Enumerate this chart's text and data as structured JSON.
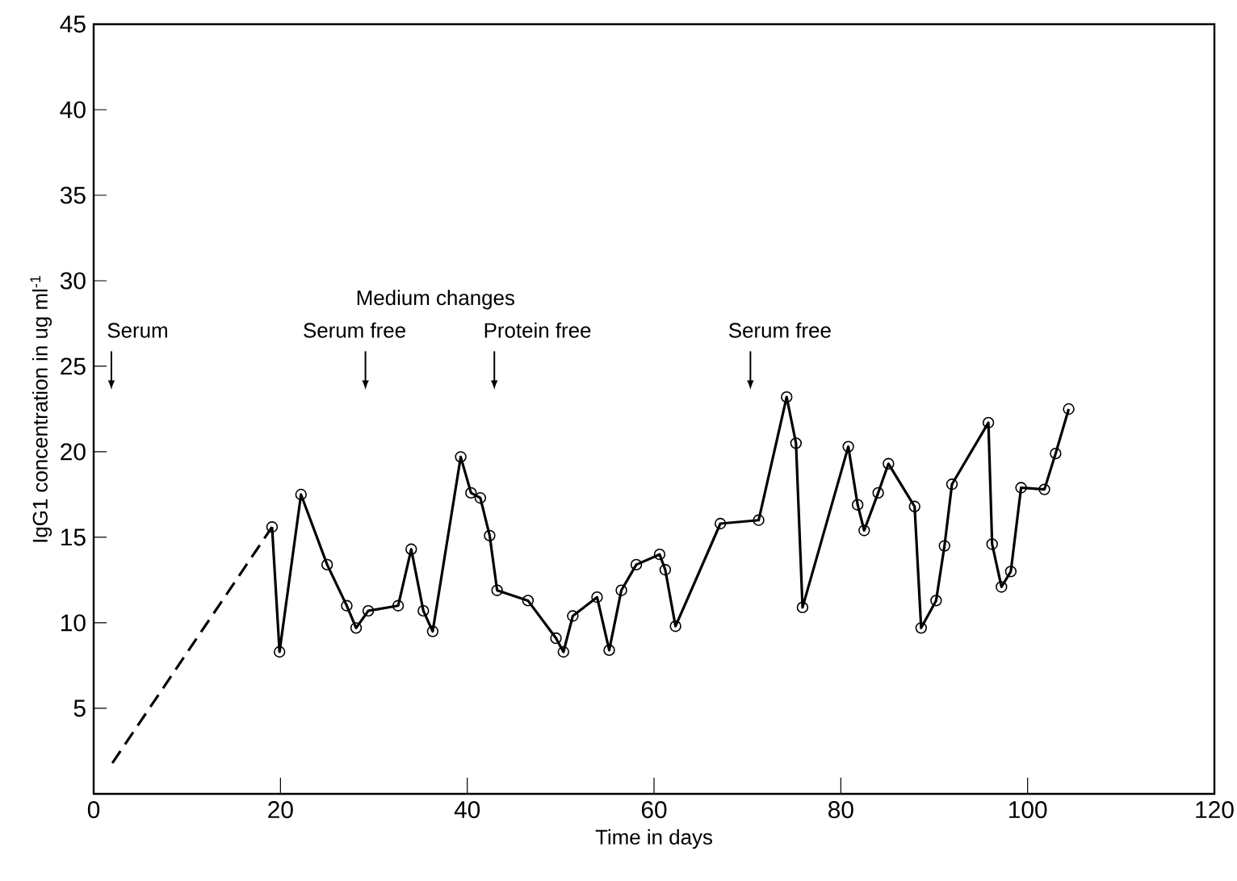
{
  "chart_data": {
    "type": "line",
    "xlabel": "Time in days",
    "ylabel": "IgG1 concentration in ug ml$^{-1}$",
    "xlim": [
      0,
      120
    ],
    "xticks": [
      0,
      20,
      40,
      60,
      80,
      100,
      120
    ],
    "ylim": [
      0,
      45
    ],
    "yticks": [
      5,
      10,
      15,
      20,
      25,
      30,
      35,
      40,
      45
    ],
    "grid": false,
    "series": [
      {
        "color": "#000000",
        "line_style": "dashed",
        "x": [
          2.0,
          19.1
        ],
        "values": [
          1.8,
          15.6
        ]
      },
      {
        "color": "#000000",
        "line_style": "solid",
        "marker": "circle",
        "x": [
          19.1,
          19.9,
          22.2,
          25.0,
          27.1,
          28.1,
          29.4,
          32.6,
          34.0,
          35.3,
          36.3,
          39.3,
          40.4,
          41.4,
          42.4,
          43.2,
          46.5,
          49.5,
          50.3,
          51.3,
          53.9,
          55.2,
          56.5,
          58.1,
          60.6,
          61.2,
          62.3,
          67.1,
          71.2,
          74.2,
          75.2,
          75.9,
          80.8,
          81.8,
          82.5,
          84.0,
          85.1,
          87.9,
          88.6,
          90.2,
          91.1,
          91.9,
          95.8,
          96.2,
          97.2,
          98.2,
          99.3,
          101.8,
          103.0,
          104.4
        ],
        "values": [
          15.6,
          8.3,
          17.5,
          13.4,
          11.0,
          9.7,
          10.7,
          11.0,
          14.3,
          10.7,
          9.5,
          19.7,
          17.6,
          17.3,
          15.1,
          11.9,
          11.3,
          9.1,
          8.3,
          10.4,
          11.5,
          8.4,
          11.9,
          13.4,
          14.0,
          13.1,
          9.8,
          15.8,
          16.0,
          23.2,
          20.5,
          10.9,
          20.3,
          16.9,
          15.4,
          17.6,
          19.3,
          16.8,
          9.7,
          11.3,
          14.5,
          18.1,
          21.7,
          14.6,
          12.1,
          13.0,
          17.9,
          17.8,
          19.9,
          22.5
        ]
      }
    ],
    "annotations": [
      "Medium changes",
      "Serum",
      "Serum free",
      "Protein free",
      "Serum free"
    ]
  }
}
